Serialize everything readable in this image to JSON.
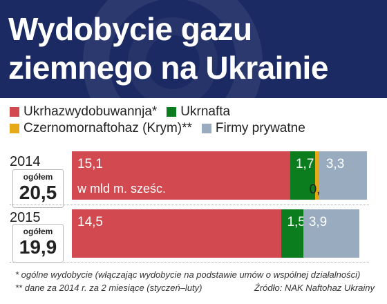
{
  "title": "Wydobycie gazu\nziemnego na Ukrainie",
  "colors": {
    "header_bg": "#1c2a63",
    "Ukrhazwydobuwannja": "#d24a4f",
    "Ukrnafta": "#0b7d1e",
    "Czernomornaftohaz": "#e6a918",
    "Firmy prywatne": "#98abbf"
  },
  "legend": [
    {
      "label": "Ukrhazwydobuwannja*",
      "color": "#d24a4f"
    },
    {
      "label": "Ukrnafta",
      "color": "#0b7d1e"
    },
    {
      "label": "Czernomornaftohaz (Krym)**",
      "color": "#e6a918"
    },
    {
      "label": "Firmy prywatne",
      "color": "#98abbf"
    }
  ],
  "unit_note": "w mld m. sześc.",
  "total_label": "ogółem",
  "chart_data": {
    "type": "bar",
    "orientation": "horizontal",
    "stacked": true,
    "title": "Wydobycie gazu ziemnego na Ukrainie",
    "unit": "w mld m. sześc.",
    "categories": [
      "2014",
      "2015"
    ],
    "totals": [
      "20,5",
      "19,9"
    ],
    "series": [
      {
        "name": "Ukrhazwydobuwannja*",
        "values": [
          15.1,
          14.5
        ],
        "labels": [
          "15,1",
          "14,5"
        ],
        "color": "#d24a4f"
      },
      {
        "name": "Ukrnafta",
        "values": [
          1.7,
          1.5
        ],
        "labels": [
          "1,7",
          "1,5"
        ],
        "color": "#0b7d1e"
      },
      {
        "name": "Czernomornaftohaz (Krym)**",
        "values": [
          0.3,
          0
        ],
        "labels": [
          "0,3",
          ""
        ],
        "color": "#e6a918"
      },
      {
        "name": "Firmy prywatne",
        "values": [
          3.3,
          3.9
        ],
        "labels": [
          "3,3",
          "3,9"
        ],
        "color": "#98abbf"
      }
    ],
    "xlim": [
      0,
      20.5
    ],
    "grid": false,
    "legend_position": "top"
  },
  "footnotes": {
    "note1": "* ogólne wydobycie (włączając wydobycie na podstawie umów o wspólnej działalności)",
    "note2": "** dane za 2014 r. za 2 miesiące (styczeń–luty)",
    "source": "Źródło: NAK Naftohaz Ukrainy"
  }
}
